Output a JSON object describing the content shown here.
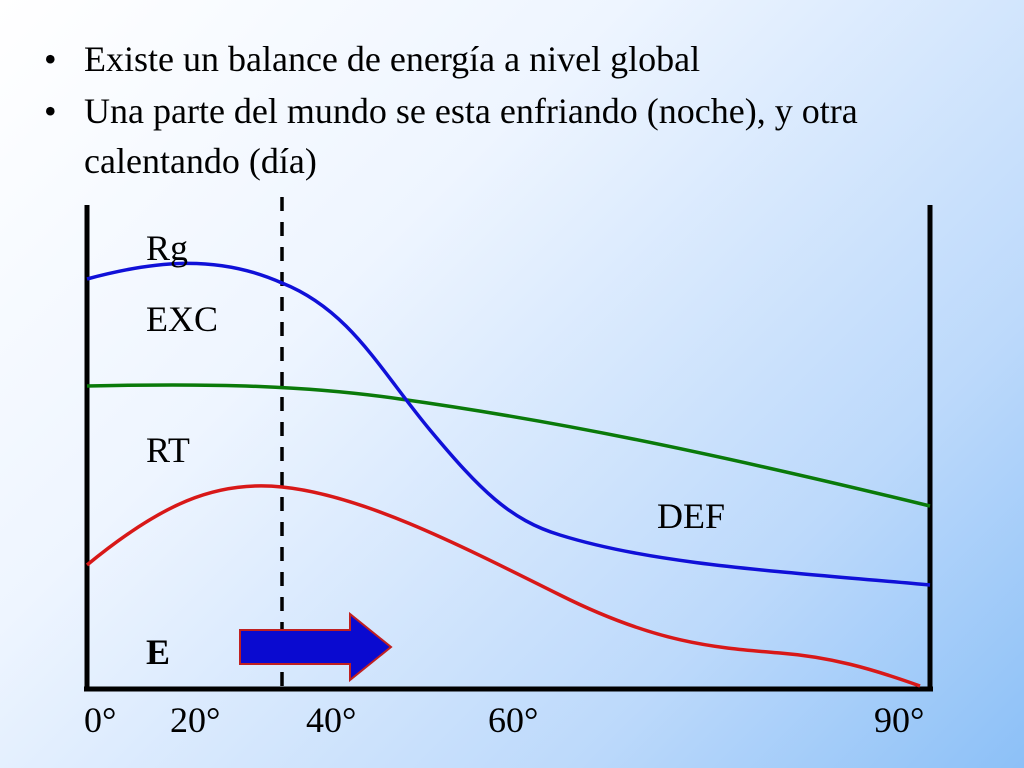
{
  "bullets": [
    {
      "text": "Existe un balance de energía a nivel global"
    },
    {
      "text": "Una parte del mundo se esta enfriando (noche), y otra calentando (día)"
    }
  ],
  "bullet_symbol": "•",
  "diagram": {
    "labels": {
      "rg": "Rg",
      "exc": "EXC",
      "rt": "RT",
      "def": "DEF",
      "energy": "E"
    },
    "x_ticks": [
      "0°",
      "20°",
      "40°",
      "60°",
      "90°"
    ],
    "colors": {
      "rg_curve": "#1010d8",
      "rt_curve": "#d81818",
      "green_curve": "#0a7a0a",
      "arrow": "#0a0ad0",
      "axis": "#000000"
    }
  }
}
